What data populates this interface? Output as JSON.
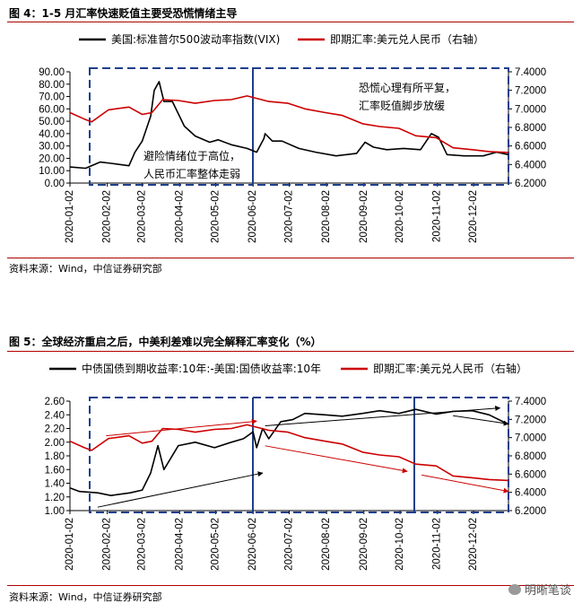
{
  "chart_data": [
    {
      "type": "line",
      "figure_label": "图 4：1-5 月汇率快速贬值主要受恐慌情绪主导",
      "source": "资料来源：Wind，中信证券研究部",
      "legend": {
        "placement": "top"
      },
      "x_ticks": [
        "2020-01-02",
        "2020-02-02",
        "2020-03-02",
        "2020-04-02",
        "2020-05-02",
        "2020-06-02",
        "2020-07-02",
        "2020-08-02",
        "2020-09-02",
        "2020-10-02",
        "2020-11-02",
        "2020-12-02"
      ],
      "xlim": [
        "2020-01-02",
        "2020-12-31"
      ],
      "y_left": {
        "ticks": [
          "0.00",
          "10.00",
          "20.00",
          "30.00",
          "40.00",
          "50.00",
          "60.00",
          "70.00",
          "80.00",
          "90.00"
        ],
        "ylim": [
          0,
          90
        ]
      },
      "y_right": {
        "ticks": [
          "6.2000",
          "6.4000",
          "6.6000",
          "6.8000",
          "7.0000",
          "7.2000",
          "7.4000"
        ],
        "ylim": [
          6.2,
          7.4
        ]
      },
      "series": [
        {
          "name": "美国:标准普尔500波动率指数(VIX)",
          "axis": "left",
          "color": "#000000",
          "x": [
            "2020-01-02",
            "2020-01-15",
            "2020-01-27",
            "2020-02-05",
            "2020-02-20",
            "2020-02-25",
            "2020-03-02",
            "2020-03-09",
            "2020-03-12",
            "2020-03-16",
            "2020-03-20",
            "2020-03-27",
            "2020-04-06",
            "2020-04-15",
            "2020-04-27",
            "2020-05-04",
            "2020-05-15",
            "2020-05-28",
            "2020-06-05",
            "2020-06-11",
            "2020-06-12",
            "2020-06-18",
            "2020-06-26",
            "2020-07-10",
            "2020-07-24",
            "2020-08-10",
            "2020-08-27",
            "2020-09-03",
            "2020-09-10",
            "2020-09-21",
            "2020-10-05",
            "2020-10-19",
            "2020-10-28",
            "2020-11-03",
            "2020-11-10",
            "2020-11-24",
            "2020-12-10",
            "2020-12-21",
            "2020-12-31"
          ],
          "values": [
            13,
            12,
            17,
            16,
            14,
            25,
            34,
            54,
            75,
            82,
            66,
            66,
            46,
            38,
            33,
            35,
            31,
            28,
            25,
            36,
            40,
            34,
            34,
            28,
            25,
            22,
            24,
            33,
            29,
            27,
            28,
            27,
            40,
            37,
            23,
            22,
            22,
            25,
            23
          ]
        },
        {
          "name": "即期汇率:美元兑人民币（右轴）",
          "axis": "right",
          "color": "#cc0000",
          "x": [
            "2020-01-02",
            "2020-01-14",
            "2020-01-20",
            "2020-02-03",
            "2020-02-20",
            "2020-03-02",
            "2020-03-10",
            "2020-03-19",
            "2020-04-01",
            "2020-04-15",
            "2020-05-01",
            "2020-05-15",
            "2020-05-28",
            "2020-06-15",
            "2020-07-01",
            "2020-07-15",
            "2020-08-01",
            "2020-08-15",
            "2020-09-01",
            "2020-09-15",
            "2020-10-01",
            "2020-10-15",
            "2020-11-01",
            "2020-11-15",
            "2020-12-01",
            "2020-12-15",
            "2020-12-31"
          ],
          "values": [
            6.96,
            6.89,
            6.86,
            6.99,
            7.02,
            6.94,
            6.96,
            7.1,
            7.09,
            7.06,
            7.09,
            7.1,
            7.14,
            7.08,
            7.06,
            7.0,
            6.96,
            6.93,
            6.84,
            6.81,
            6.79,
            6.71,
            6.69,
            6.58,
            6.56,
            6.54,
            6.53
          ]
        }
      ],
      "annotations": [
        {
          "text": "恐慌心理有所平复，",
          "line": 1
        },
        {
          "text": "汇率贬值脚步放缓",
          "line": 2
        },
        {
          "text": "避险情绪位于高位，",
          "line": 1
        },
        {
          "text": "人民币汇率整体走弱",
          "line": 2
        }
      ]
    },
    {
      "type": "line",
      "figure_label": "图 5：全球经济重启之后，中美利差难以完全解释汇率变化（%）",
      "source": "资料来源：Wind，中信证券研究部",
      "legend": {
        "placement": "top"
      },
      "x_ticks": [
        "2020-01-02",
        "2020-02-02",
        "2020-03-02",
        "2020-04-02",
        "2020-05-02",
        "2020-06-02",
        "2020-07-02",
        "2020-08-02",
        "2020-09-02",
        "2020-10-02",
        "2020-11-02",
        "2020-12-02"
      ],
      "xlim": [
        "2020-01-02",
        "2020-12-31"
      ],
      "y_left": {
        "ticks": [
          "1.00",
          "1.20",
          "1.40",
          "1.60",
          "1.80",
          "2.00",
          "2.20",
          "2.40",
          "2.60"
        ],
        "ylim": [
          1.0,
          2.6
        ]
      },
      "y_right": {
        "ticks": [
          "6.2000",
          "6.4000",
          "6.6000",
          "6.8000",
          "7.0000",
          "7.2000",
          "7.4000"
        ],
        "ylim": [
          6.2,
          7.4
        ]
      },
      "series": [
        {
          "name": "中债国债到期收益率:10年:-美国:国债收益率:10年",
          "axis": "left",
          "color": "#000000",
          "x": [
            "2020-01-02",
            "2020-01-10",
            "2020-01-25",
            "2020-02-05",
            "2020-02-21",
            "2020-03-02",
            "2020-03-09",
            "2020-03-15",
            "2020-03-20",
            "2020-04-01",
            "2020-04-15",
            "2020-05-01",
            "2020-05-15",
            "2020-05-25",
            "2020-06-02",
            "2020-06-05",
            "2020-06-10",
            "2020-06-15",
            "2020-06-25",
            "2020-07-05",
            "2020-07-15",
            "2020-08-01",
            "2020-08-15",
            "2020-09-01",
            "2020-09-15",
            "2020-10-01",
            "2020-10-15",
            "2020-11-01",
            "2020-11-15",
            "2020-12-01",
            "2020-12-15",
            "2020-12-31"
          ],
          "values": [
            1.33,
            1.28,
            1.26,
            1.22,
            1.26,
            1.3,
            1.55,
            1.95,
            1.6,
            1.95,
            2.0,
            1.92,
            2.0,
            2.05,
            2.15,
            1.92,
            2.2,
            2.05,
            2.3,
            2.33,
            2.42,
            2.4,
            2.38,
            2.42,
            2.46,
            2.42,
            2.48,
            2.41,
            2.45,
            2.46,
            2.4,
            2.26
          ]
        },
        {
          "name": "即期汇率:美元兑人民币（右轴）",
          "axis": "right",
          "color": "#cc0000",
          "x": [
            "2020-01-02",
            "2020-01-14",
            "2020-01-20",
            "2020-02-03",
            "2020-02-20",
            "2020-03-02",
            "2020-03-10",
            "2020-03-19",
            "2020-04-01",
            "2020-04-15",
            "2020-05-01",
            "2020-05-15",
            "2020-05-28",
            "2020-06-15",
            "2020-07-01",
            "2020-07-15",
            "2020-08-01",
            "2020-08-15",
            "2020-09-01",
            "2020-09-15",
            "2020-10-01",
            "2020-10-15",
            "2020-11-01",
            "2020-11-15",
            "2020-12-01",
            "2020-12-15",
            "2020-12-31"
          ],
          "values": [
            6.96,
            6.89,
            6.86,
            6.99,
            7.02,
            6.94,
            6.96,
            7.1,
            7.09,
            7.06,
            7.09,
            7.1,
            7.14,
            7.08,
            7.06,
            7.0,
            6.96,
            6.93,
            6.84,
            6.81,
            6.79,
            6.71,
            6.69,
            6.58,
            6.56,
            6.54,
            6.53
          ]
        }
      ],
      "annotations": []
    }
  ],
  "watermark": {
    "text": "明晰笔谈"
  }
}
